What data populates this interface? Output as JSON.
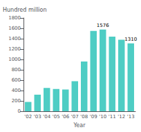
{
  "chart_data": {
    "type": "bar",
    "categories": [
      "'02",
      "'03",
      "'04",
      "'05",
      "'06",
      "'07",
      "'08",
      "'09",
      "'10",
      "'11",
      "'12",
      "'13"
    ],
    "values": [
      180,
      320,
      450,
      430,
      420,
      580,
      960,
      1550,
      1576,
      1440,
      1380,
      1310
    ],
    "color": "#4ECDC4",
    "xlabel": "Year",
    "ylabel": "Hundred million",
    "ylim": [
      0,
      1800
    ],
    "yticks": [
      0,
      200,
      400,
      600,
      800,
      1000,
      1200,
      1400,
      1600,
      1800
    ],
    "annotations": [
      {
        "x": "'10",
        "text": "1576"
      },
      {
        "x": "'13",
        "text": "1310"
      }
    ],
    "grid": false
  }
}
